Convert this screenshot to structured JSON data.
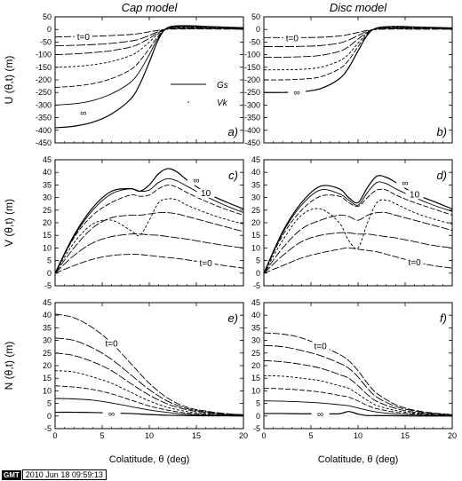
{
  "columns": [
    "Cap model",
    "Disc model"
  ],
  "x_label": "Colatitude, θ (deg)",
  "footer": {
    "logo": "GMT",
    "timestamp": "2010 Jun 18 09:59:13"
  },
  "colors": {
    "curve": "#000000",
    "axis": "#000000"
  },
  "chart_data": [
    {
      "id": "a",
      "panel_label": "a)",
      "type": "line",
      "column": "Cap model",
      "ylabel": "U (θ,t) (m)",
      "xlim": [
        0,
        20
      ],
      "ylim": [
        -450,
        50
      ],
      "xticks": [
        0,
        5,
        10,
        15,
        20
      ],
      "yticks": [
        -450,
        -400,
        -350,
        -300,
        -250,
        -200,
        -150,
        -100,
        -50,
        0,
        50
      ],
      "legend": [
        "Gs",
        "Vk"
      ],
      "legend_position": "center-right",
      "labels": {
        "first": "t=0",
        "last": "∞"
      },
      "x": [
        0,
        2,
        4,
        6,
        8,
        9,
        10,
        11,
        12,
        14,
        16,
        20
      ],
      "series": [
        {
          "values": [
            -30,
            -28,
            -27,
            -24,
            -20,
            -16,
            -9,
            -3,
            1,
            2,
            2,
            1
          ]
        },
        {
          "values": [
            -65,
            -63,
            -60,
            -55,
            -46,
            -38,
            -24,
            -8,
            2,
            4,
            4,
            2
          ]
        },
        {
          "values": [
            -100,
            -97,
            -92,
            -84,
            -70,
            -56,
            -35,
            -12,
            3,
            6,
            5,
            3
          ]
        },
        {
          "values": [
            -150,
            -147,
            -140,
            -127,
            -104,
            -82,
            -50,
            -16,
            4,
            8,
            7,
            4
          ]
        },
        {
          "values": [
            -230,
            -225,
            -215,
            -195,
            -160,
            -125,
            -76,
            -24,
            5,
            10,
            9,
            5
          ]
        },
        {
          "values": [
            -300,
            -295,
            -282,
            -255,
            -210,
            -165,
            -100,
            -30,
            6,
            12,
            10,
            6
          ]
        },
        {
          "values": [
            -390,
            -384,
            -368,
            -335,
            -277,
            -217,
            -130,
            -38,
            8,
            15,
            12,
            7
          ]
        }
      ]
    },
    {
      "id": "b",
      "panel_label": "b)",
      "type": "line",
      "column": "Disc model",
      "xlim": [
        0,
        20
      ],
      "ylim": [
        -450,
        50
      ],
      "xticks": [
        0,
        5,
        10,
        15,
        20
      ],
      "yticks": [
        -450,
        -400,
        -350,
        -300,
        -250,
        -200,
        -150,
        -100,
        -50,
        0,
        50
      ],
      "labels": {
        "first": "t=0",
        "last": "∞"
      },
      "x": [
        0,
        2,
        4,
        6,
        8,
        9,
        10,
        11,
        12,
        14,
        16,
        20
      ],
      "series": [
        {
          "values": [
            -32,
            -32,
            -32,
            -31,
            -26,
            -20,
            -12,
            -4,
            0,
            2,
            1,
            1
          ]
        },
        {
          "values": [
            -68,
            -68,
            -67,
            -64,
            -54,
            -42,
            -24,
            -7,
            2,
            4,
            3,
            2
          ]
        },
        {
          "values": [
            -110,
            -110,
            -108,
            -103,
            -87,
            -68,
            -38,
            -11,
            3,
            6,
            5,
            3
          ]
        },
        {
          "values": [
            -160,
            -160,
            -158,
            -150,
            -125,
            -98,
            -54,
            -14,
            4,
            8,
            6,
            4
          ]
        },
        {
          "values": [
            -200,
            -200,
            -197,
            -188,
            -157,
            -122,
            -68,
            -18,
            5,
            10,
            8,
            5
          ]
        },
        {
          "values": [
            -250,
            -250,
            -247,
            -235,
            -196,
            -152,
            -85,
            -22,
            6,
            12,
            10,
            6
          ]
        }
      ]
    },
    {
      "id": "c",
      "panel_label": "c)",
      "type": "line",
      "column": "Cap model",
      "ylabel": "V (θ,t) (m)",
      "xlim": [
        0,
        20
      ],
      "ylim": [
        -5,
        45
      ],
      "xticks": [
        0,
        5,
        10,
        15,
        20
      ],
      "yticks": [
        -5,
        0,
        5,
        10,
        15,
        20,
        25,
        30,
        35,
        40,
        45
      ],
      "labels": {
        "first": "t=0",
        "last": "∞",
        "top": "10"
      },
      "x": [
        0,
        2,
        4,
        6,
        8,
        9,
        10,
        11,
        12,
        13,
        14,
        16,
        18,
        20
      ],
      "series": [
        {
          "values": [
            0,
            3,
            5.5,
            7,
            7.5,
            7.4,
            7,
            6.6,
            6.2,
            5.8,
            5.3,
            4.2,
            3,
            2
          ]
        },
        {
          "values": [
            0,
            7,
            12,
            14.5,
            15.5,
            15.5,
            15.2,
            15,
            14.5,
            14,
            13.5,
            12.2,
            11,
            10
          ]
        },
        {
          "values": [
            0,
            10,
            18,
            22,
            23,
            23,
            23.5,
            24,
            24,
            23.5,
            22.5,
            20.5,
            18.5,
            16.5
          ]
        },
        {
          "values": [
            0,
            12,
            19.5,
            21,
            17,
            15,
            21,
            28,
            29.5,
            29,
            27,
            24,
            21.5,
            19.5
          ]
        },
        {
          "values": [
            0,
            14,
            23,
            28,
            31,
            30.5,
            31,
            33.5,
            35,
            34,
            32,
            28.5,
            25.5,
            23
          ]
        },
        {
          "values": [
            0,
            14.5,
            25,
            31.5,
            33.5,
            32.5,
            33,
            36,
            37.5,
            36.5,
            34.5,
            30.5,
            27,
            24
          ]
        },
        {
          "values": [
            0,
            15,
            26,
            32.5,
            33.5,
            32.5,
            35,
            39.5,
            41.5,
            40,
            37,
            32,
            28.5,
            25.5
          ]
        }
      ]
    },
    {
      "id": "d",
      "panel_label": "d)",
      "type": "line",
      "column": "Disc model",
      "xlim": [
        0,
        20
      ],
      "ylim": [
        -5,
        45
      ],
      "xticks": [
        0,
        5,
        10,
        15,
        20
      ],
      "yticks": [
        -5,
        0,
        5,
        10,
        15,
        20,
        25,
        30,
        35,
        40,
        45
      ],
      "labels": {
        "first": "t=0",
        "last": "∞",
        "top": "10"
      },
      "x": [
        0,
        2,
        4,
        6,
        8,
        9,
        10,
        11,
        12,
        13,
        14,
        16,
        18,
        20
      ],
      "series": [
        {
          "values": [
            0,
            3,
            6,
            8,
            9.5,
            10,
            9.5,
            9,
            8.5,
            7.5,
            6.5,
            4.5,
            3,
            2
          ]
        },
        {
          "values": [
            0,
            7,
            12.5,
            15,
            16,
            16,
            15.5,
            15.5,
            15,
            14.5,
            14,
            12.5,
            11,
            10
          ]
        },
        {
          "values": [
            0,
            10,
            17.5,
            21,
            23,
            22.5,
            21,
            23,
            24,
            24,
            23,
            21,
            19,
            17
          ]
        },
        {
          "values": [
            0,
            13,
            23,
            25.5,
            20,
            13,
            10,
            20,
            28,
            29,
            27.5,
            24,
            21.5,
            19.5
          ]
        },
        {
          "values": [
            0,
            15,
            25,
            30.5,
            30.5,
            28,
            26.5,
            30,
            33,
            33,
            31,
            28,
            25.5,
            23
          ]
        },
        {
          "values": [
            0,
            16,
            27,
            33,
            31.5,
            29,
            27,
            32,
            36,
            35.5,
            33.5,
            30,
            27,
            24.5
          ]
        },
        {
          "values": [
            0,
            16.5,
            28,
            34.5,
            33.5,
            30,
            28,
            34,
            38.5,
            38,
            36,
            31.5,
            28.5,
            25.5
          ]
        }
      ]
    },
    {
      "id": "e",
      "panel_label": "e)",
      "type": "line",
      "column": "Cap model",
      "ylabel": "N (θ,t) (m)",
      "xlim": [
        0,
        20
      ],
      "ylim": [
        -5,
        45
      ],
      "xticks": [
        0,
        5,
        10,
        15,
        20
      ],
      "yticks": [
        -5,
        0,
        5,
        10,
        15,
        20,
        25,
        30,
        35,
        40,
        45
      ],
      "labels": {
        "first": "t=0",
        "last": "∞"
      },
      "x": [
        0,
        2,
        4,
        6,
        8,
        10,
        12,
        14,
        16,
        18,
        20
      ],
      "series": [
        {
          "values": [
            40.5,
            39,
            35,
            29,
            21,
            13,
            7,
            3.5,
            2,
            1,
            0.5
          ]
        },
        {
          "values": [
            31,
            30,
            27,
            22.5,
            16.5,
            10.5,
            5.8,
            3,
            1.7,
            0.9,
            0.5
          ]
        },
        {
          "values": [
            25,
            24,
            21.5,
            18,
            13,
            8.3,
            4.7,
            2.5,
            1.4,
            0.7,
            0.4
          ]
        },
        {
          "values": [
            18,
            17.5,
            15.5,
            13,
            9.5,
            6,
            3.4,
            1.8,
            1,
            0.5,
            0.3
          ]
        },
        {
          "values": [
            12,
            11.5,
            10.5,
            8.8,
            6.4,
            4,
            2.3,
            1.2,
            0.7,
            0.4,
            0.2
          ]
        },
        {
          "values": [
            7,
            6.8,
            6.3,
            5.2,
            3.8,
            2.4,
            1.4,
            0.7,
            0.4,
            0.2,
            0.1
          ]
        },
        {
          "values": [
            1.5,
            1.5,
            1.4,
            1.2,
            1,
            0.6,
            0.3,
            0.2,
            0.1,
            0.1,
            0
          ]
        }
      ]
    },
    {
      "id": "f",
      "panel_label": "f)",
      "type": "line",
      "column": "Disc model",
      "xlim": [
        0,
        20
      ],
      "ylim": [
        -5,
        45
      ],
      "xticks": [
        0,
        5,
        10,
        15,
        20
      ],
      "yticks": [
        -5,
        0,
        5,
        10,
        15,
        20,
        25,
        30,
        35,
        40,
        45
      ],
      "labels": {
        "first": "t=0",
        "last": "∞"
      },
      "x": [
        0,
        2,
        4,
        6,
        8,
        9,
        10,
        11,
        12,
        14,
        16,
        18,
        20
      ],
      "series": [
        {
          "values": [
            33,
            32.5,
            31,
            28,
            24.5,
            22,
            18,
            13,
            9,
            4.5,
            2.3,
            1.2,
            0.6
          ]
        },
        {
          "values": [
            28,
            27.5,
            26,
            24,
            21,
            19,
            15.5,
            11,
            7.5,
            3.8,
            2,
            1,
            0.5
          ]
        },
        {
          "values": [
            22,
            21.5,
            20.5,
            19,
            16.5,
            15,
            12,
            8.5,
            5.8,
            3,
            1.5,
            0.8,
            0.4
          ]
        },
        {
          "values": [
            16,
            15.8,
            15,
            14,
            12,
            11,
            8.7,
            6.2,
            4.2,
            2.2,
            1.1,
            0.6,
            0.3
          ]
        },
        {
          "values": [
            11,
            10.8,
            10.3,
            9.5,
            8.2,
            7.5,
            6,
            4.2,
            2.9,
            1.5,
            0.8,
            0.4,
            0.2
          ]
        },
        {
          "values": [
            6,
            5.9,
            5.6,
            5.2,
            4.5,
            4.1,
            3.2,
            2.3,
            1.6,
            0.8,
            0.4,
            0.2,
            0.1
          ]
        },
        {
          "values": [
            1,
            1,
            0.9,
            0.9,
            0.9,
            1.8,
            0.8,
            0.2,
            0.2,
            0.1,
            0,
            0,
            0
          ]
        }
      ]
    }
  ]
}
